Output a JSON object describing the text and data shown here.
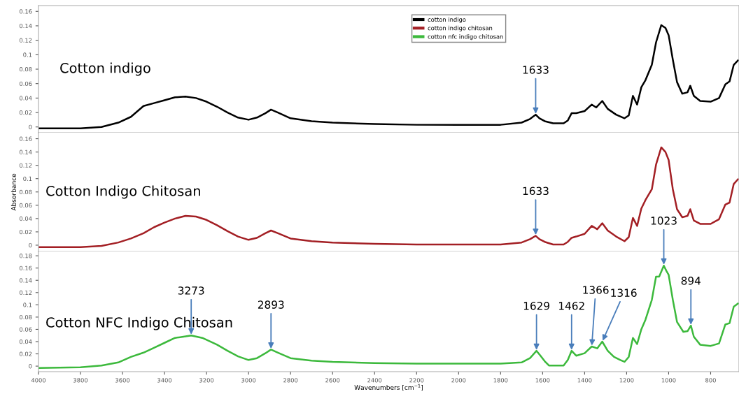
{
  "chart_data": [
    {
      "type": "line",
      "xlim": [
        4000,
        665
      ],
      "ylim": [
        -0.008,
        0.168
      ],
      "yticks": [
        0,
        0.02,
        0.04,
        0.06,
        0.08,
        0.1,
        0.12,
        0.14,
        0.16
      ],
      "tick_labels": "y",
      "grid": false,
      "legend": "top",
      "marker": "none",
      "line_style": "solid",
      "series": [
        {
          "name": "cotton indigo",
          "color": "#000000",
          "x": [
            4000,
            3800,
            3700,
            3620,
            3560,
            3500,
            3450,
            3400,
            3350,
            3300,
            3250,
            3200,
            3150,
            3100,
            3050,
            3000,
            2960,
            2920,
            2893,
            2860,
            2800,
            2700,
            2600,
            2400,
            2200,
            2000,
            1800,
            1700,
            1660,
            1633,
            1615,
            1590,
            1550,
            1500,
            1480,
            1462,
            1440,
            1400,
            1366,
            1345,
            1316,
            1290,
            1250,
            1210,
            1190,
            1170,
            1150,
            1130,
            1110,
            1080,
            1060,
            1035,
            1015,
            1000,
            980,
            960,
            935,
            910,
            897,
            880,
            850,
            800,
            760,
            730,
            710,
            690,
            670
          ],
          "values": [
            -0.002,
            -0.002,
            0.0,
            0.006,
            0.014,
            0.029,
            0.033,
            0.037,
            0.041,
            0.042,
            0.04,
            0.035,
            0.028,
            0.02,
            0.013,
            0.01,
            0.013,
            0.019,
            0.024,
            0.02,
            0.012,
            0.008,
            0.006,
            0.004,
            0.003,
            0.003,
            0.003,
            0.006,
            0.011,
            0.017,
            0.012,
            0.008,
            0.005,
            0.005,
            0.009,
            0.019,
            0.019,
            0.022,
            0.031,
            0.027,
            0.036,
            0.025,
            0.017,
            0.012,
            0.016,
            0.043,
            0.031,
            0.055,
            0.065,
            0.086,
            0.117,
            0.141,
            0.137,
            0.127,
            0.093,
            0.062,
            0.046,
            0.048,
            0.057,
            0.043,
            0.036,
            0.035,
            0.04,
            0.059,
            0.063,
            0.086,
            0.092
          ]
        }
      ],
      "annotations": [
        "Cotton indigo",
        {
          "text": "1633",
          "x": 1633,
          "y": 0.017
        }
      ]
    },
    {
      "type": "line",
      "xlim": [
        4000,
        665
      ],
      "ylim": [
        -0.0095,
        0.169
      ],
      "yticks": [
        0,
        0.02,
        0.04,
        0.06,
        0.08,
        0.1,
        0.12,
        0.14,
        0.16
      ],
      "tick_labels": "y",
      "grid": false,
      "ylabel": "Absorbance",
      "marker": "none",
      "line_style": "solid",
      "series": [
        {
          "name": "cotton indigo chitosan",
          "color": "#a31f24",
          "x": [
            4000,
            3800,
            3700,
            3620,
            3560,
            3500,
            3450,
            3400,
            3350,
            3300,
            3250,
            3200,
            3150,
            3100,
            3050,
            3000,
            2960,
            2920,
            2893,
            2860,
            2800,
            2700,
            2600,
            2400,
            2200,
            2000,
            1800,
            1700,
            1660,
            1633,
            1615,
            1590,
            1550,
            1500,
            1480,
            1462,
            1440,
            1400,
            1366,
            1340,
            1316,
            1290,
            1250,
            1210,
            1190,
            1170,
            1150,
            1130,
            1110,
            1080,
            1060,
            1035,
            1015,
            1000,
            980,
            960,
            935,
            910,
            897,
            880,
            850,
            800,
            760,
            730,
            710,
            690,
            670
          ],
          "values": [
            -0.003,
            -0.003,
            -0.001,
            0.004,
            0.01,
            0.018,
            0.027,
            0.034,
            0.04,
            0.044,
            0.043,
            0.038,
            0.03,
            0.021,
            0.013,
            0.008,
            0.011,
            0.018,
            0.022,
            0.018,
            0.01,
            0.006,
            0.004,
            0.002,
            0.001,
            0.001,
            0.001,
            0.004,
            0.009,
            0.014,
            0.009,
            0.005,
            0.001,
            0.001,
            0.005,
            0.011,
            0.013,
            0.017,
            0.029,
            0.024,
            0.033,
            0.022,
            0.013,
            0.006,
            0.012,
            0.041,
            0.029,
            0.055,
            0.068,
            0.084,
            0.121,
            0.147,
            0.14,
            0.128,
            0.084,
            0.054,
            0.042,
            0.044,
            0.054,
            0.037,
            0.032,
            0.032,
            0.039,
            0.061,
            0.064,
            0.092,
            0.099
          ]
        }
      ],
      "annotations": [
        "Cotton Indigo Chitosan",
        {
          "text": "1633",
          "x": 1633,
          "y": 0.014
        }
      ]
    },
    {
      "type": "line",
      "xlim": [
        4000,
        665
      ],
      "ylim": [
        -0.009,
        0.187
      ],
      "yticks": [
        0,
        0.02,
        0.04,
        0.06,
        0.08,
        0.1,
        0.12,
        0.14,
        0.16,
        0.18
      ],
      "xticks": [
        4000,
        3800,
        3600,
        3400,
        3200,
        3000,
        2800,
        2600,
        2400,
        2200,
        2000,
        1800,
        1600,
        1400,
        1200,
        1000,
        800
      ],
      "xlabel": "Wavenumbers [cm$^{−1}$]",
      "grid": false,
      "marker": "none",
      "line_style": "solid",
      "series": [
        {
          "name": "cotton nfc indigo chitosan",
          "color": "#3cb93c",
          "x": [
            4000,
            3800,
            3700,
            3620,
            3560,
            3500,
            3450,
            3400,
            3350,
            3273,
            3220,
            3150,
            3100,
            3050,
            3000,
            2960,
            2920,
            2893,
            2860,
            2800,
            2700,
            2600,
            2400,
            2200,
            2000,
            1800,
            1700,
            1660,
            1629,
            1610,
            1590,
            1570,
            1500,
            1480,
            1462,
            1440,
            1400,
            1366,
            1340,
            1316,
            1290,
            1260,
            1230,
            1210,
            1190,
            1170,
            1150,
            1130,
            1110,
            1080,
            1060,
            1045,
            1023,
            1010,
            1000,
            980,
            960,
            930,
            910,
            894,
            880,
            850,
            800,
            760,
            730,
            710,
            690,
            670
          ],
          "values": [
            -0.003,
            -0.002,
            0.001,
            0.006,
            0.015,
            0.022,
            0.03,
            0.038,
            0.046,
            0.05,
            0.046,
            0.035,
            0.025,
            0.016,
            0.01,
            0.013,
            0.021,
            0.027,
            0.022,
            0.013,
            0.009,
            0.007,
            0.005,
            0.004,
            0.004,
            0.004,
            0.006,
            0.013,
            0.025,
            0.017,
            0.008,
            0.001,
            0.001,
            0.01,
            0.025,
            0.017,
            0.021,
            0.032,
            0.029,
            0.04,
            0.025,
            0.015,
            0.01,
            0.007,
            0.015,
            0.046,
            0.036,
            0.06,
            0.076,
            0.108,
            0.146,
            0.146,
            0.164,
            0.155,
            0.149,
            0.108,
            0.072,
            0.056,
            0.057,
            0.066,
            0.048,
            0.035,
            0.033,
            0.037,
            0.068,
            0.07,
            0.097,
            0.102
          ]
        }
      ],
      "annotations": [
        "Cotton NFC Indigo Chitosan",
        {
          "text": "3273",
          "x": 3273,
          "y": 0.05
        },
        {
          "text": "2893",
          "x": 2893,
          "y": 0.027
        },
        {
          "text": "1629",
          "x": 1629,
          "y": 0.025
        },
        {
          "text": "1462",
          "x": 1462,
          "y": 0.025
        },
        {
          "text": "1366",
          "x": 1366,
          "y": 0.032
        },
        {
          "text": "1316",
          "x": 1316,
          "y": 0.04
        },
        {
          "text": "1023",
          "x": 1023,
          "y": 0.164
        },
        {
          "text": "894",
          "x": 894,
          "y": 0.066
        }
      ]
    }
  ]
}
